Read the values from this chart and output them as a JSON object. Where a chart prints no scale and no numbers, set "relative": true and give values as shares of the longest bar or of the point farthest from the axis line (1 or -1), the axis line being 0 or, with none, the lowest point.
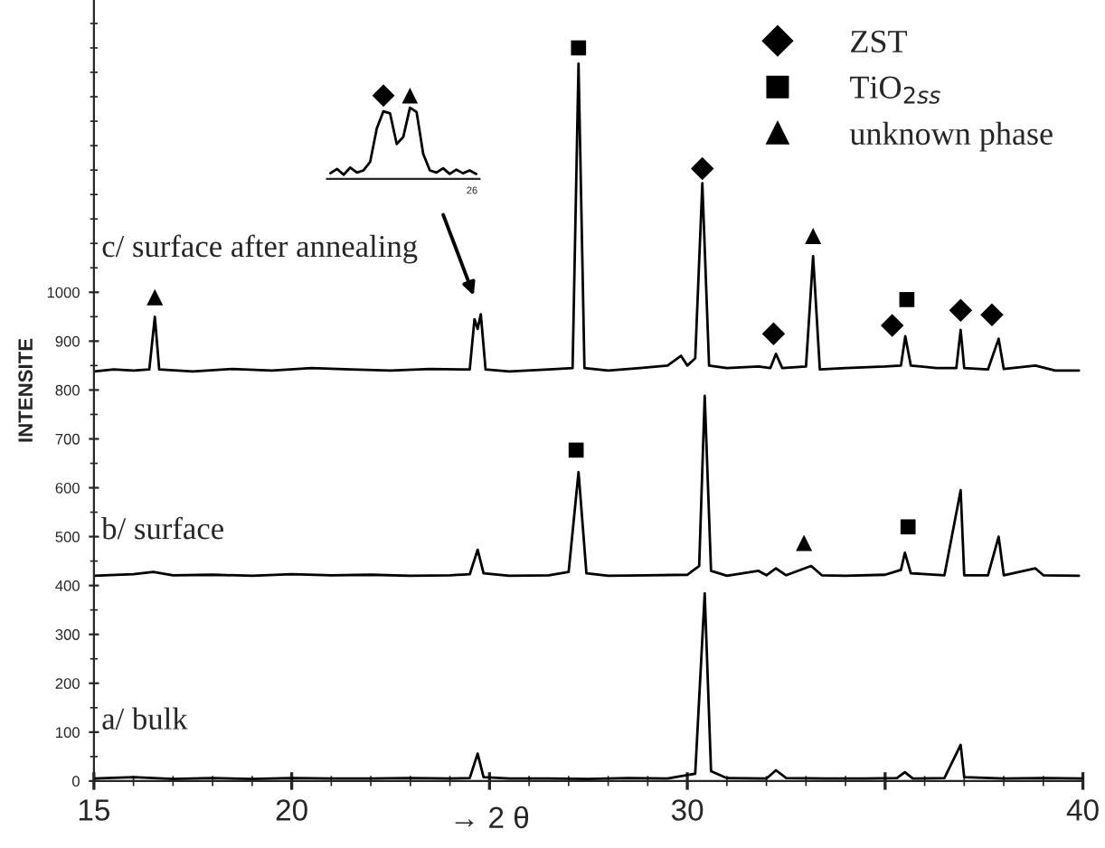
{
  "chart_data": [
    {
      "type": "line",
      "xlabel": "→ 2 θ",
      "ylabel": "INTENSITE",
      "annotations": [
        "c/ surface after annealing",
        "b/ surface",
        "a/ bulk"
      ],
      "xlim": [
        15,
        40
      ],
      "xticks": [
        15,
        20,
        {
          "value": 25,
          "label": null
        },
        30,
        {
          "value": 35,
          "label": null
        },
        40
      ],
      "ylim": [
        0,
        1598
      ],
      "yticks": [
        0,
        100,
        200,
        300,
        400,
        500,
        600,
        700,
        800,
        900,
        1000
      ],
      "legend": "top right",
      "grid": false,
      "series": [
        {
          "color": "#000000",
          "x": [
            15.0,
            15.5,
            16.0,
            16.4,
            16.54,
            16.65,
            17.5,
            18.5,
            19.5,
            20.5,
            21.5,
            22.5,
            23.5,
            24.5,
            24.62,
            24.7,
            24.78,
            24.9,
            25.5,
            26.5,
            27.1,
            27.25,
            27.4,
            28.0,
            28.8,
            29.5,
            29.84,
            30.0,
            30.2,
            30.38,
            30.55,
            31.0,
            31.8,
            32.1,
            32.24,
            32.4,
            33.0,
            33.18,
            33.35,
            34.0,
            35.0,
            35.4,
            35.51,
            35.65,
            36.3,
            36.8,
            36.91,
            37.0,
            37.6,
            37.87,
            38.0,
            38.8,
            39.3,
            39.9
          ],
          "values": [
            838,
            842,
            840,
            842,
            950,
            842,
            838,
            843,
            840,
            845,
            842,
            840,
            843,
            842,
            945,
            925,
            955,
            842,
            838,
            842,
            845,
            1468,
            845,
            840,
            845,
            850,
            870,
            850,
            865,
            1223,
            850,
            845,
            848,
            845,
            874,
            845,
            848,
            1074,
            842,
            845,
            848,
            850,
            910,
            850,
            845,
            845,
            923,
            845,
            842,
            905,
            843,
            850,
            840,
            840
          ]
        },
        {
          "color": "#000000",
          "x": [
            15.0,
            16.0,
            16.5,
            17.0,
            18.0,
            19.0,
            20.0,
            21.0,
            22.0,
            23.0,
            24.0,
            24.5,
            24.7,
            24.85,
            25.5,
            26.5,
            27.0,
            27.25,
            27.45,
            28.0,
            29.0,
            30.0,
            30.3,
            30.44,
            30.6,
            31.0,
            31.8,
            32.0,
            32.24,
            32.5,
            33.13,
            33.4,
            34.0,
            35.0,
            35.4,
            35.5,
            35.65,
            36.5,
            36.91,
            37.0,
            37.6,
            37.87,
            38.0,
            38.8,
            39.0,
            39.9
          ],
          "values": [
            420,
            423,
            428,
            421,
            422,
            420,
            423,
            421,
            422,
            420,
            421,
            423,
            473,
            425,
            420,
            421,
            428,
            632,
            425,
            420,
            421,
            422,
            440,
            788,
            430,
            420,
            430,
            421,
            435,
            421,
            440,
            421,
            420,
            422,
            432,
            467,
            425,
            421,
            595,
            421,
            421,
            500,
            421,
            435,
            421,
            420
          ]
        },
        {
          "color": "#000000",
          "x": [
            15.0,
            16.0,
            17.0,
            18.0,
            19.0,
            20.0,
            21.0,
            22.0,
            23.0,
            24.0,
            24.5,
            24.7,
            24.85,
            25.5,
            26.5,
            27.5,
            28.5,
            29.5,
            30.2,
            30.44,
            30.6,
            31.0,
            32.0,
            32.24,
            32.5,
            33.5,
            34.5,
            35.3,
            35.5,
            35.7,
            36.5,
            36.91,
            37.0,
            38.0,
            39.0,
            40.0
          ],
          "values": [
            5,
            8,
            4,
            6,
            4,
            6,
            5,
            5,
            6,
            5,
            6,
            56,
            8,
            5,
            5,
            4,
            6,
            5,
            15,
            384,
            20,
            6,
            5,
            22,
            6,
            5,
            5,
            6,
            18,
            5,
            6,
            74,
            8,
            5,
            6,
            5
          ]
        },
        {
          "name": "ZST",
          "type": "scatter",
          "marker": "diamond",
          "color": "#000000",
          "x": [
            30.38,
            32.18,
            35.18,
            36.91,
            37.7
          ],
          "values": [
            1253,
            915,
            932,
            963,
            954
          ]
        },
        {
          "name": "TiO$_{2ss}$",
          "type": "scatter",
          "marker": "square",
          "color": "#000000",
          "x": [
            27.25,
            35.55,
            27.19,
            35.58
          ],
          "values": [
            1500,
            985,
            677,
            520
          ]
        },
        {
          "name": "unknown phase",
          "type": "scatter",
          "marker": "triangle",
          "color": "#000000",
          "x": [
            16.54,
            33.18,
            32.95
          ],
          "values": [
            990,
            1115,
            487
          ]
        }
      ]
    },
    {
      "type": "line",
      "relative": true,
      "annotations": [
        "26"
      ],
      "categories": [
        null,
        null,
        null,
        null,
        null,
        null,
        null,
        null,
        null,
        null,
        null,
        null,
        null,
        null,
        null,
        null,
        null,
        null,
        null,
        null,
        null,
        null,
        null
      ],
      "series": [
        {
          "color": "#000000",
          "values": [
            0.08,
            0.14,
            0.06,
            0.16,
            0.09,
            0.12,
            0.24,
            0.71,
            0.95,
            0.92,
            0.49,
            0.59,
            1.0,
            0.94,
            0.35,
            0.12,
            0.09,
            0.15,
            0.07,
            0.13,
            0.08,
            0.12,
            0.07
          ]
        }
      ]
    }
  ]
}
